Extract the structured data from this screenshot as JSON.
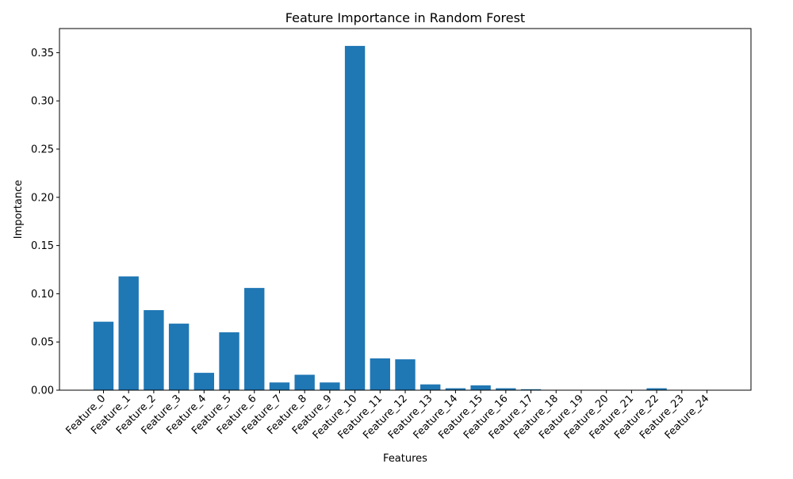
{
  "chart_data": {
    "type": "bar",
    "title": "Feature Importance in Random Forest",
    "xlabel": "Features",
    "ylabel": "Importance",
    "ylim": [
      0,
      0.375
    ],
    "yticks": [
      0.0,
      0.05,
      0.1,
      0.15,
      0.2,
      0.25,
      0.3,
      0.35
    ],
    "ytick_labels": [
      "0.00",
      "0.05",
      "0.10",
      "0.15",
      "0.20",
      "0.25",
      "0.30",
      "0.35"
    ],
    "grid": false,
    "bar_color": "#1f77b4",
    "categories": [
      "Feature_0",
      "Feature_1",
      "Feature_2",
      "Feature_3",
      "Feature_4",
      "Feature_5",
      "Feature_6",
      "Feature_7",
      "Feature_8",
      "Feature_9",
      "Feature_10",
      "Feature_11",
      "Feature_12",
      "Feature_13",
      "Feature_14",
      "Feature_15",
      "Feature_16",
      "Feature_17",
      "Feature_18",
      "Feature_19",
      "Feature_20",
      "Feature_21",
      "Feature_22",
      "Feature_23",
      "Feature_24"
    ],
    "values": [
      0.071,
      0.118,
      0.083,
      0.069,
      0.018,
      0.06,
      0.106,
      0.008,
      0.016,
      0.008,
      0.357,
      0.033,
      0.032,
      0.006,
      0.002,
      0.005,
      0.002,
      0.001,
      0.0002,
      0.0002,
      0.0002,
      0.0002,
      0.002,
      0.0001,
      0.0001
    ]
  }
}
